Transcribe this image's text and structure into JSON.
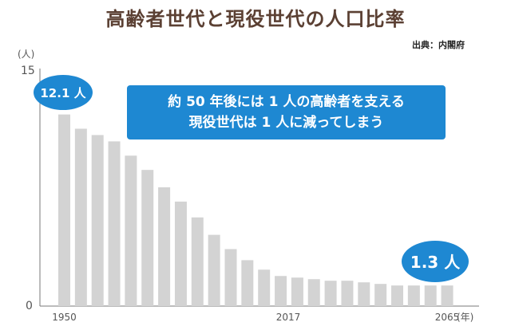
{
  "title": "高齢者世代と現役世代の人口比率",
  "source": "出典：内閣府",
  "note": {
    "line1": "約 50 年後には 1 人の高齢者を支える",
    "line2": "現役世代は 1 人に減ってしまう"
  },
  "colors": {
    "bar": "#d3d3d3",
    "accent": "#1e88d2",
    "axis": "#7a7a7a"
  },
  "chart_data": {
    "type": "bar",
    "title": "高齢者世代と現役世代の人口比率",
    "y_unit": "(人)",
    "x_unit": "(年)",
    "ylim": [
      0,
      15
    ],
    "yticks": [
      "15",
      "0"
    ],
    "x_tick_labels": [
      "1950",
      "2017",
      "2065"
    ],
    "values": [
      12.1,
      11.2,
      10.8,
      10.4,
      9.5,
      8.6,
      7.5,
      6.6,
      5.6,
      4.5,
      3.6,
      2.9,
      2.3,
      1.9,
      1.8,
      1.7,
      1.6,
      1.6,
      1.5,
      1.4,
      1.3,
      1.3,
      1.3,
      1.3
    ],
    "callouts": [
      {
        "label": "12.1 人",
        "bar_index": 0
      },
      {
        "label": "1.3 人",
        "bar_index": 23
      }
    ],
    "grid": false
  }
}
